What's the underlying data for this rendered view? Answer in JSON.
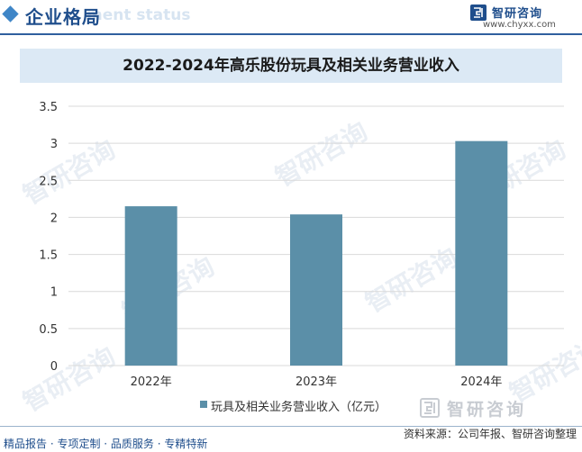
{
  "header": {
    "section_title": "企业格局",
    "section_subtitle_ghost": "ment status",
    "brand_name": "智研咨询",
    "brand_url": "www.chyxx.com"
  },
  "watermark_text": "智研咨询",
  "chart_data": {
    "type": "bar",
    "title": "2022-2024年高乐股份玩具及相关业务营业收入",
    "categories": [
      "2022年",
      "2023年",
      "2024年"
    ],
    "series": [
      {
        "name": "玩具及相关业务营业收入（亿元）",
        "values": [
          2.15,
          2.04,
          3.03
        ],
        "color": "#5b8fa8"
      }
    ],
    "ylim": [
      0,
      3.5
    ],
    "yticks": [
      "0",
      "0.5",
      "1",
      "1.5",
      "2",
      "2.5",
      "3",
      "3.5"
    ],
    "grid": true,
    "legend": "bottom-center"
  },
  "footer": {
    "brand_name": "智研咨询",
    "source": "资料来源：公司年报、智研咨询整理",
    "tags": "精品报告 · 专项定制 · 品质服务 · 专精特新"
  },
  "colors": {
    "accent": "#1f4e8c",
    "bar": "#5b8fa8",
    "title_band": "#dce9f5"
  }
}
